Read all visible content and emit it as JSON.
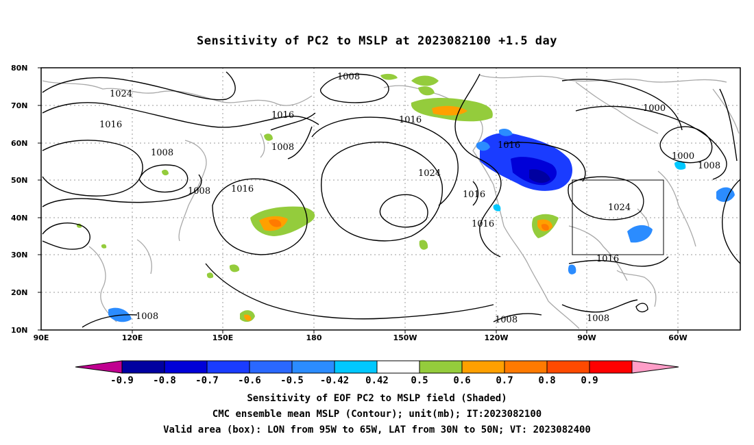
{
  "title": "Sensitivity of PC2 to MSLP at 2023082100 +1.5 day",
  "map": {
    "lat_labels": [
      "80N",
      "70N",
      "60N",
      "50N",
      "40N",
      "30N",
      "20N",
      "10N"
    ],
    "lon_labels": [
      "90E",
      "120E",
      "150E",
      "180",
      "150W",
      "120W",
      "90W",
      "60W"
    ],
    "contour_labels": [
      "1024",
      "1016",
      "1008",
      "1016",
      "1008",
      "1008",
      "1016",
      "1008",
      "1016",
      "1024",
      "1016",
      "1016",
      "1016",
      "1000",
      "1000",
      "1008",
      "1024",
      "1016",
      "1008",
      "1008",
      "1008"
    ],
    "valid_box": {
      "lon_from": "95W",
      "lon_to": "65W",
      "lat_from": "30N",
      "lat_to": "50N"
    }
  },
  "colorbar": {
    "labels": [
      "-0.9",
      "-0.8",
      "-0.7",
      "-0.6",
      "-0.5",
      "-0.42",
      "0.42",
      "0.5",
      "0.6",
      "0.7",
      "0.8",
      "0.9"
    ],
    "colors": [
      "#0000a0",
      "#0000d8",
      "#1a3cff",
      "#2a68ff",
      "#2b8cff",
      "#00c8ff",
      "#ffffff",
      "#94cc3c",
      "#ffa000",
      "#ff7a00",
      "#ff4a00",
      "#ff0000"
    ],
    "end_low_color": "#c00090",
    "end_high_color": "#ff9ec8"
  },
  "footer": {
    "line1": "Sensitivity of EOF PC2 to MSLP field (Shaded)",
    "line2": "CMC ensemble mean MSLP (Contour); unit(mb); IT:2023082100",
    "line3": "Valid area (box): LON from 95W to 65W, LAT from 30N to 50N; VT: 2023082400"
  }
}
